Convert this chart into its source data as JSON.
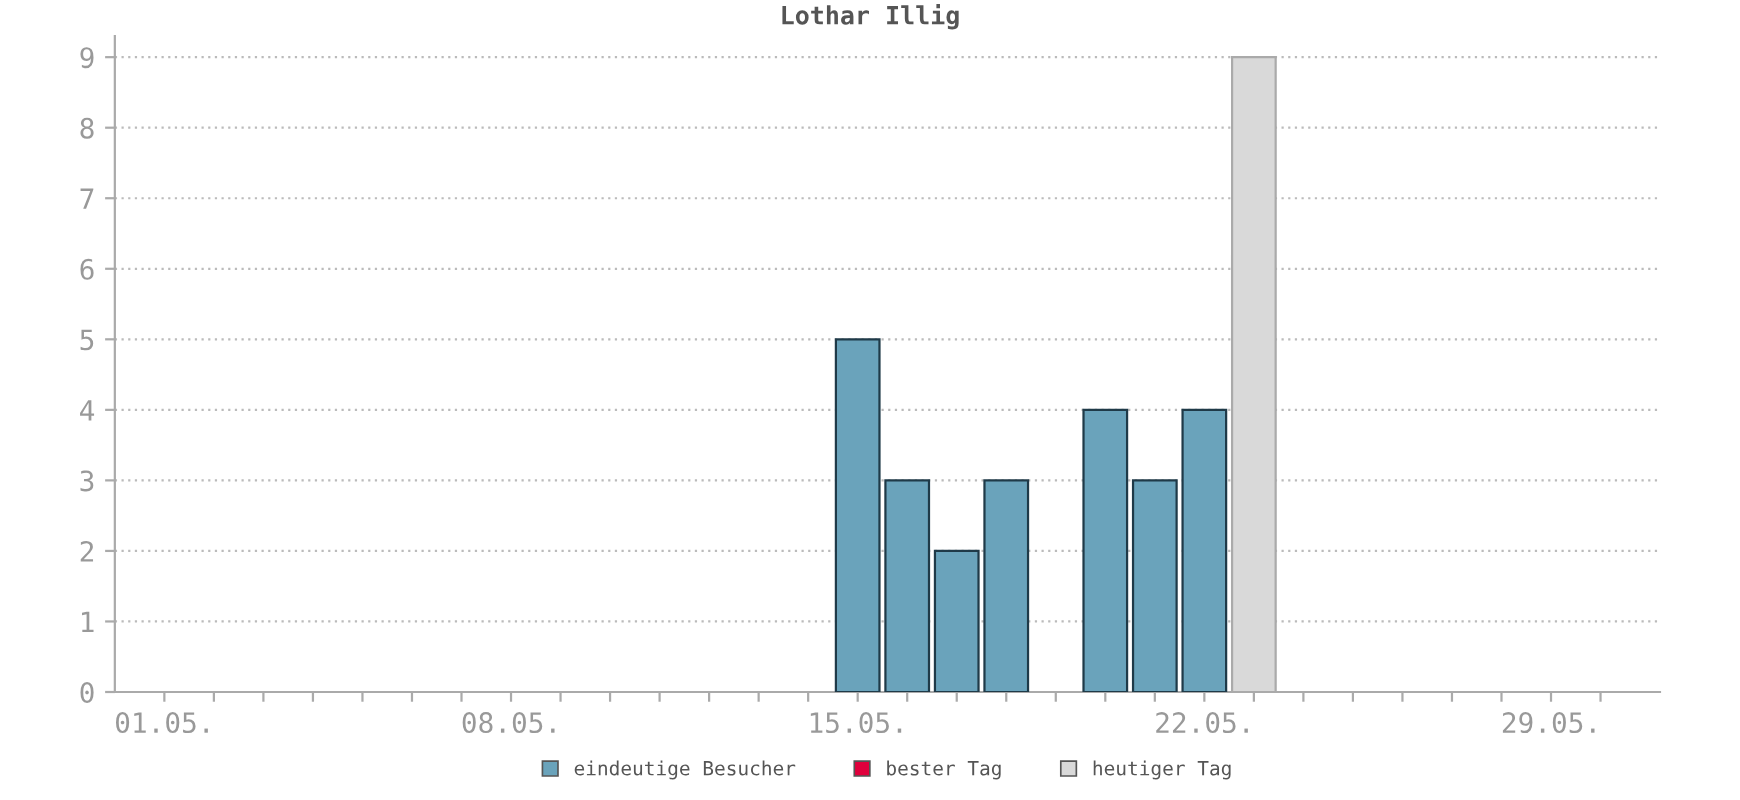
{
  "chart_data": {
    "type": "bar",
    "title": "Lothar Illig",
    "categories": [
      "01.05.",
      null,
      null,
      null,
      null,
      null,
      null,
      "08.05.",
      null,
      null,
      null,
      null,
      null,
      null,
      "15.05.",
      null,
      null,
      null,
      null,
      null,
      null,
      "22.05.",
      null,
      null,
      null,
      null,
      null,
      null,
      "29.05.",
      null
    ],
    "series": [
      {
        "name": "eindeutige Besucher",
        "color": "#6aa3bb",
        "values": [
          null,
          null,
          null,
          null,
          null,
          null,
          null,
          null,
          null,
          null,
          null,
          null,
          null,
          null,
          5,
          3,
          2,
          3,
          null,
          4,
          3,
          4,
          null,
          null,
          null,
          null,
          null,
          null,
          null,
          null
        ]
      },
      {
        "name": "bester Tag",
        "color": "#e0003c",
        "values": [
          null,
          null,
          null,
          null,
          null,
          null,
          null,
          null,
          null,
          null,
          null,
          null,
          null,
          null,
          null,
          null,
          null,
          null,
          null,
          null,
          null,
          null,
          null,
          null,
          null,
          null,
          null,
          null,
          null,
          null
        ]
      },
      {
        "name": "heutiger Tag",
        "color": "#d9d9d9",
        "values": [
          null,
          null,
          null,
          null,
          null,
          null,
          null,
          null,
          null,
          null,
          null,
          null,
          null,
          null,
          null,
          null,
          null,
          null,
          null,
          null,
          null,
          null,
          9,
          null,
          null,
          null,
          null,
          null,
          null,
          null
        ]
      }
    ],
    "ylim": [
      0,
      9.3
    ],
    "yticks": [
      0,
      1,
      2,
      3,
      4,
      5,
      6,
      7,
      8,
      9
    ],
    "grid": "y",
    "legend": "bottom"
  }
}
